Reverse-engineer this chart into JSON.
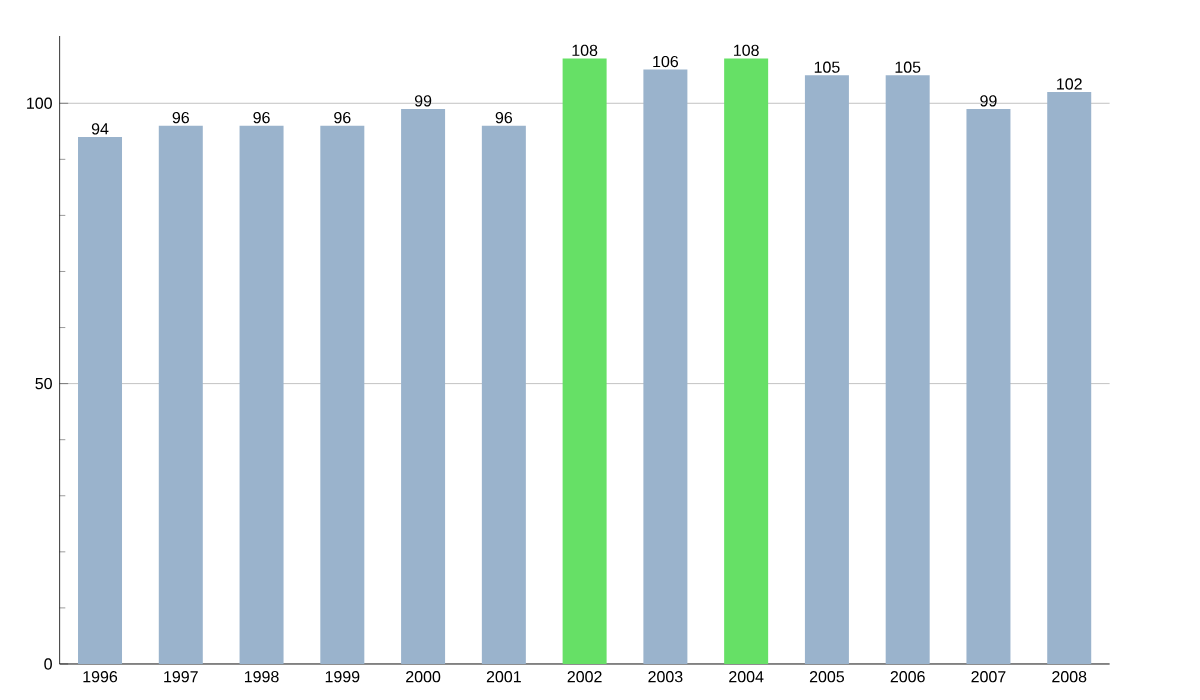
{
  "chart_data": {
    "type": "bar",
    "categories": [
      "1996",
      "1997",
      "1998",
      "1999",
      "2000",
      "2001",
      "2002",
      "2003",
      "2004",
      "2005",
      "2006",
      "2007",
      "2008"
    ],
    "values": [
      94,
      96,
      96,
      96,
      99,
      96,
      108,
      106,
      108,
      105,
      105,
      99,
      102
    ],
    "colors": [
      "#9ab3cc",
      "#9ab3cc",
      "#9ab3cc",
      "#9ab3cc",
      "#9ab3cc",
      "#9ab3cc",
      "#66e066",
      "#9ab3cc",
      "#66e066",
      "#9ab3cc",
      "#9ab3cc",
      "#9ab3cc",
      "#9ab3cc"
    ],
    "ylim": [
      0,
      112
    ],
    "yticks": [
      0,
      50,
      100
    ],
    "grid": "y",
    "data_labels": true
  }
}
